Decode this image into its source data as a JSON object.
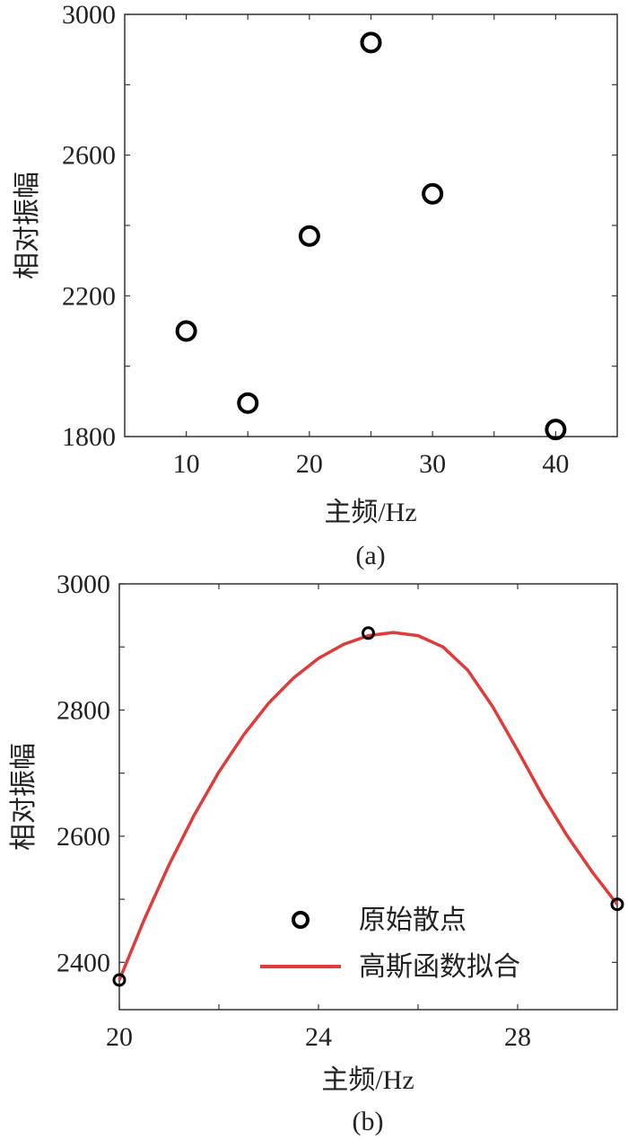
{
  "chart_data": [
    {
      "type": "scatter",
      "panel_label": "(a)",
      "xlabel": "主频/Hz",
      "ylabel": "相对振幅",
      "xlim": [
        5,
        45
      ],
      "ylim": [
        1800,
        3000
      ],
      "xticks": [
        "10",
        "20",
        "30",
        "40"
      ],
      "yticks": [
        "1800",
        "2200",
        "2600",
        "3000"
      ],
      "grid": false,
      "series": [
        {
          "x": [
            10,
            15,
            20,
            25,
            30,
            40
          ],
          "y": [
            2100,
            1895,
            2370,
            2920,
            2490,
            1820
          ]
        }
      ]
    },
    {
      "type": "line",
      "panel_label": "(b)",
      "xlabel": "主频/Hz",
      "ylabel": "相对振幅",
      "xlim": [
        20,
        30
      ],
      "ylim": [
        2325,
        3000
      ],
      "xticks": [
        "20",
        "24",
        "28"
      ],
      "yticks": [
        "2400",
        "2600",
        "2800",
        "3000"
      ],
      "grid": false,
      "legend_position": "bottom-right",
      "series": [
        {
          "name": "原始散点",
          "kind": "scatter",
          "x": [
            20,
            25,
            30
          ],
          "y": [
            2372,
            2922,
            2492
          ],
          "color": "#000000"
        },
        {
          "name": "高斯函数拟合",
          "kind": "line",
          "color": "#e03a3a",
          "x": [
            20,
            20.5,
            21,
            21.5,
            22,
            22.5,
            23,
            23.5,
            24,
            24.5,
            25,
            25.5,
            26,
            26.5,
            27,
            27.5,
            28,
            28.5,
            29,
            29.5,
            30
          ],
          "y": [
            2372,
            2468,
            2555,
            2633,
            2702,
            2761,
            2811,
            2851,
            2882,
            2904,
            2918,
            2923,
            2918,
            2900,
            2863,
            2805,
            2736,
            2664,
            2600,
            2543,
            2492
          ]
        }
      ]
    }
  ]
}
